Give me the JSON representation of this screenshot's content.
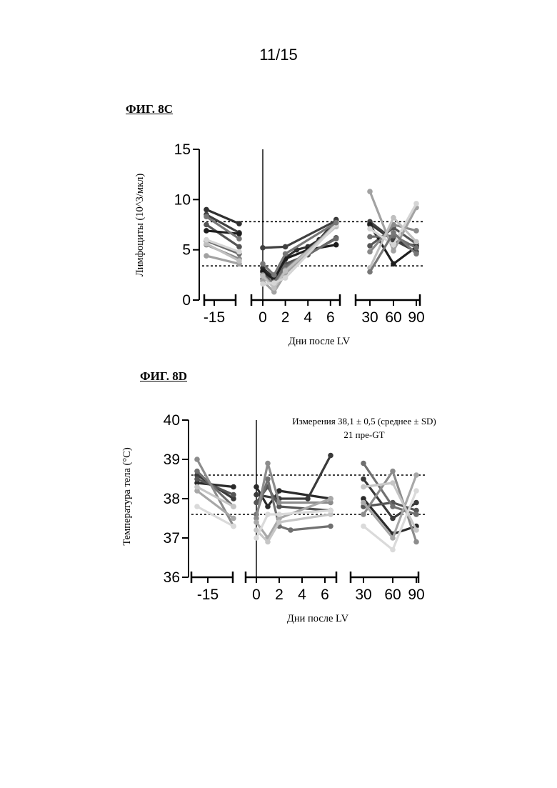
{
  "page": {
    "number": "11/15"
  },
  "figures": {
    "c": {
      "label": "ФИГ. 8C"
    },
    "d": {
      "label": "ФИГ. 8D"
    }
  },
  "chart_data": [
    {
      "type": "line",
      "title": "ФИГ. 8C",
      "xlabel": "Дни после LV",
      "ylabel": "Лимфоциты (10^3/мкл)",
      "ylim": [
        0,
        15
      ],
      "yticks": [
        "0",
        "5",
        "10",
        "15"
      ],
      "x_segments": [
        {
          "ticks": [
            "-15"
          ]
        },
        {
          "ticks": [
            "0",
            "2",
            "4",
            "6"
          ]
        },
        {
          "ticks": [
            "30",
            "60",
            "90"
          ]
        }
      ],
      "reference_lines": [
        7.8,
        3.4
      ],
      "vertical_line_x": 0,
      "series": [
        {
          "color": "#303030",
          "pre": [
            9.0,
            7.6
          ],
          "early": [
            [
              0,
              3.2
            ],
            [
              1,
              2.2
            ],
            [
              2,
              4.2
            ],
            [
              3,
              5.0
            ],
            [
              4,
              5.3
            ],
            [
              5,
              6.0
            ],
            [
              6.5,
              8.0
            ]
          ],
          "late": [
            [
              30,
              7.6
            ],
            [
              60,
              5.9
            ],
            [
              90,
              5.4
            ]
          ]
        },
        {
          "color": "#404040",
          "pre": [
            8.5,
            6.7
          ],
          "early": [
            [
              0,
              5.2
            ],
            [
              2,
              5.3
            ],
            [
              6.5,
              7.9
            ]
          ],
          "late": [
            [
              30,
              7.8
            ],
            [
              60,
              6.0
            ],
            [
              90,
              4.8
            ]
          ]
        },
        {
          "color": "#555555",
          "pre": [
            7.5,
            5.3
          ],
          "early": [
            [
              0,
              2.8
            ],
            [
              1,
              1.5
            ],
            [
              2,
              3.6
            ],
            [
              4,
              4.5
            ],
            [
              6.5,
              6.2
            ]
          ],
          "late": [
            [
              30,
              5.4
            ],
            [
              60,
              7.2
            ],
            [
              90,
              5.6
            ]
          ]
        },
        {
          "color": "#1e1e1e",
          "pre": [
            6.9,
            6.6
          ],
          "early": [
            [
              0,
              2.9
            ],
            [
              1,
              2.0
            ],
            [
              2,
              4.1
            ],
            [
              4,
              5.0
            ],
            [
              6.5,
              5.5
            ]
          ],
          "late": [
            [
              30,
              7.5
            ],
            [
              60,
              3.6
            ],
            [
              90,
              5.3
            ]
          ]
        },
        {
          "color": "#6c6c6c",
          "pre": [
            5.9,
            4.6
          ],
          "early": [
            [
              0,
              2.1
            ],
            [
              1,
              1.8
            ],
            [
              2,
              3.3
            ],
            [
              6.5,
              6.1
            ]
          ],
          "late": [
            [
              30,
              6.3
            ],
            [
              60,
              6.4
            ],
            [
              90,
              5.2
            ]
          ]
        },
        {
          "color": "#8a8a8a",
          "pre": [
            5.5,
            4.1
          ],
          "early": [
            [
              0,
              2.5
            ],
            [
              1,
              1.4
            ],
            [
              2,
              3.0
            ],
            [
              6.5,
              7.4
            ]
          ],
          "late": [
            [
              30,
              4.8
            ],
            [
              60,
              7.5
            ],
            [
              90,
              6.9
            ]
          ]
        },
        {
          "color": "#a2a2a2",
          "pre": [
            4.4,
            3.6
          ],
          "early": [
            [
              0,
              1.9
            ],
            [
              1,
              0.8
            ],
            [
              2,
              2.6
            ],
            [
              6.5,
              7.6
            ]
          ],
          "late": [
            [
              30,
              10.8
            ],
            [
              60,
              4.9
            ],
            [
              90,
              9.2
            ]
          ]
        },
        {
          "color": "#bfbfbf",
          "pre": [
            5.6,
            3.9
          ],
          "early": [
            [
              0,
              2.4
            ],
            [
              1,
              1.2
            ],
            [
              2,
              2.9
            ],
            [
              6.5,
              7.3
            ]
          ],
          "late": [
            [
              30,
              3.2
            ],
            [
              60,
              8.2
            ],
            [
              90,
              5.8
            ]
          ]
        },
        {
          "color": "#d5d5d5",
          "pre": [
            6.0,
            4.8
          ],
          "early": [
            [
              0,
              1.6
            ],
            [
              1,
              1.7
            ],
            [
              2,
              2.2
            ],
            [
              6.5,
              7.5
            ]
          ],
          "late": [
            [
              30,
              7.1
            ],
            [
              60,
              5.5
            ],
            [
              90,
              9.6
            ]
          ]
        },
        {
          "color": "#777777",
          "pre": [
            8.3,
            6.1
          ],
          "early": [
            [
              0,
              3.6
            ],
            [
              1,
              2.5
            ],
            [
              2,
              4.6
            ],
            [
              6.5,
              7.7
            ]
          ],
          "late": [
            [
              30,
              2.8
            ],
            [
              60,
              6.7
            ],
            [
              90,
              4.6
            ]
          ]
        }
      ]
    },
    {
      "type": "line",
      "title": "ФИГ. 8D",
      "xlabel": "Дни после LV",
      "ylabel": "Температура тела (°C)",
      "ylim": [
        36,
        40
      ],
      "yticks": [
        "36",
        "37",
        "38",
        "39",
        "40"
      ],
      "x_segments": [
        {
          "ticks": [
            "-15"
          ]
        },
        {
          "ticks": [
            "0",
            "2",
            "4",
            "6"
          ]
        },
        {
          "ticks": [
            "30",
            "60",
            "90"
          ]
        }
      ],
      "reference_lines": [
        38.6,
        37.6
      ],
      "vertical_line_x": 0,
      "annotation": [
        "Измерения 38,1 ± 0,5 (среднее ± SD)",
        "21 пре-GT"
      ],
      "series": [
        {
          "color": "#2a2a2a",
          "pre": [
            38.4,
            38.3
          ],
          "early": [
            [
              0,
              38.3
            ],
            [
              1,
              37.8
            ],
            [
              2,
              38.2
            ],
            [
              6.5,
              38.0
            ]
          ],
          "late": [
            [
              30,
              38.0
            ],
            [
              60,
              37.1
            ],
            [
              90,
              37.3
            ]
          ]
        },
        {
          "color": "#3a3a3a",
          "pre": [
            38.6,
            38.0
          ],
          "early": [
            [
              0,
              38.1
            ],
            [
              2,
              38.0
            ],
            [
              4.5,
              38.0
            ],
            [
              6.5,
              39.1
            ]
          ],
          "late": [
            [
              30,
              38.5
            ],
            [
              60,
              37.5
            ],
            [
              90,
              37.9
            ]
          ]
        },
        {
          "color": "#555555",
          "pre": [
            38.5,
            38.1
          ],
          "early": [
            [
              0,
              37.9
            ],
            [
              1,
              38.3
            ],
            [
              2,
              37.8
            ],
            [
              6.5,
              37.7
            ]
          ],
          "late": [
            [
              30,
              37.8
            ],
            [
              60,
              37.9
            ],
            [
              90,
              37.7
            ]
          ]
        },
        {
          "color": "#707070",
          "pre": [
            38.7,
            37.8
          ],
          "early": [
            [
              0,
              37.6
            ],
            [
              1,
              38.5
            ],
            [
              2,
              37.3
            ],
            [
              3,
              37.2
            ],
            [
              6.5,
              37.3
            ]
          ],
          "late": [
            [
              30,
              38.9
            ],
            [
              60,
              37.8
            ],
            [
              90,
              37.6
            ]
          ]
        },
        {
          "color": "#8c8c8c",
          "pre": [
            39.0,
            37.3
          ],
          "early": [
            [
              0,
              37.5
            ],
            [
              1,
              38.9
            ],
            [
              2,
              37.9
            ],
            [
              6.5,
              37.9
            ]
          ],
          "late": [
            [
              30,
              37.6
            ],
            [
              60,
              38.7
            ],
            [
              90,
              36.9
            ]
          ]
        },
        {
          "color": "#a8a8a8",
          "pre": [
            38.2,
            37.5
          ],
          "early": [
            [
              0,
              37.4
            ],
            [
              1,
              37.0
            ],
            [
              2,
              37.5
            ],
            [
              6.5,
              38.0
            ]
          ],
          "late": [
            [
              30,
              37.9
            ],
            [
              60,
              37.0
            ],
            [
              90,
              38.6
            ]
          ]
        },
        {
          "color": "#c6c6c6",
          "pre": [
            38.3,
            37.8
          ],
          "early": [
            [
              0,
              37.2
            ],
            [
              1,
              36.9
            ],
            [
              2,
              37.4
            ],
            [
              6.5,
              37.6
            ]
          ],
          "late": [
            [
              30,
              38.3
            ],
            [
              60,
              38.4
            ],
            [
              90,
              37.2
            ]
          ]
        },
        {
          "color": "#dadada",
          "pre": [
            37.8,
            37.3
          ],
          "early": [
            [
              0,
              37.0
            ],
            [
              1,
              37.6
            ],
            [
              2,
              37.6
            ],
            [
              6.5,
              37.7
            ]
          ],
          "late": [
            [
              30,
              37.3
            ],
            [
              60,
              36.7
            ],
            [
              90,
              38.2
            ]
          ]
        }
      ]
    }
  ]
}
